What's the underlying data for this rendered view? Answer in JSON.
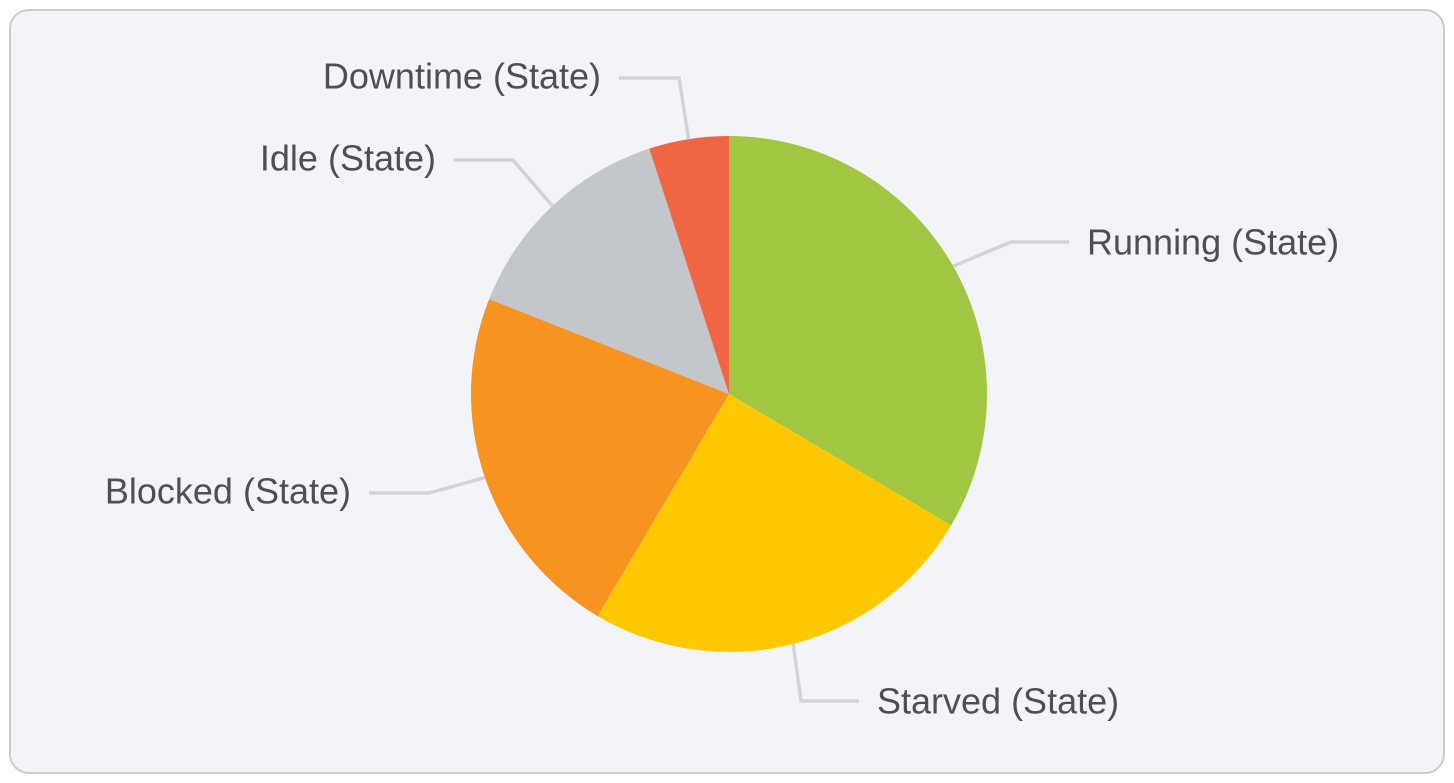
{
  "chart_data": {
    "type": "pie",
    "title": "",
    "start": "top",
    "direction": "clockwise",
    "slices": [
      {
        "label": "Running (State)",
        "value": 33.5,
        "color": "#a0c642"
      },
      {
        "label": "Starved (State)",
        "value": 25.0,
        "color": "#ffc800"
      },
      {
        "label": "Blocked (State)",
        "value": 22.5,
        "color": "#f79321"
      },
      {
        "label": "Idle (State)",
        "value": 14.0,
        "color": "#c3c6cb"
      },
      {
        "label": "Downtime (State)",
        "value": 5.0,
        "color": "#f06543"
      }
    ],
    "legend": "none"
  }
}
